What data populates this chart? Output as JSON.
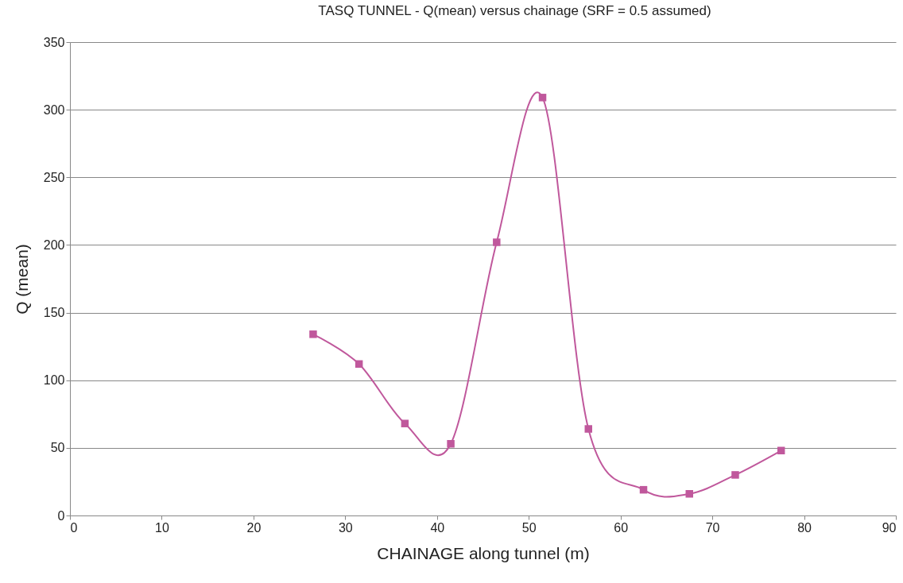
{
  "chart_data": {
    "type": "line",
    "title": "TASQ TUNNEL - Q(mean) versus chainage (SRF = 0.5 assumed)",
    "xlabel": "CHAINAGE along tunnel (m)",
    "ylabel": "Q (mean)",
    "x": [
      26.5,
      31.5,
      36.5,
      41.5,
      46.5,
      51.5,
      56.5,
      62.5,
      67.5,
      72.5,
      77.5
    ],
    "series": [
      {
        "color": "#c0589c",
        "values": [
          134,
          112,
          68,
          53,
          202,
          309,
          64,
          19,
          16,
          30,
          48
        ]
      }
    ],
    "xlim": [
      0,
      90
    ],
    "xticks": [
      0,
      10,
      20,
      30,
      40,
      50,
      60,
      70,
      80,
      90
    ],
    "ylim": [
      0,
      350
    ],
    "yticks": [
      0,
      50,
      100,
      150,
      200,
      250,
      300,
      350
    ],
    "grid": "y",
    "marker": "square",
    "line_style": "solid"
  }
}
